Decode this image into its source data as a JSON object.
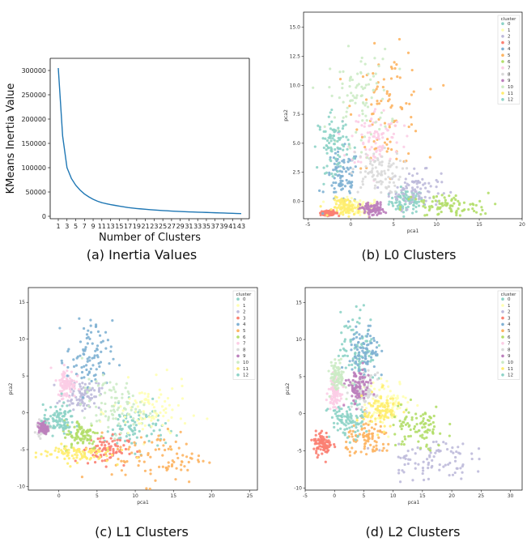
{
  "chart_data": [
    {
      "id": "a",
      "type": "line",
      "caption": "(a) Inertia Values",
      "xlabel": "Number of Clusters",
      "ylabel": "KMeans Inertia Value",
      "x": [
        1,
        2,
        3,
        4,
        5,
        6,
        7,
        8,
        9,
        10,
        11,
        12,
        13,
        14,
        15,
        16,
        17,
        18,
        19,
        20,
        21,
        22,
        23,
        24,
        25,
        26,
        27,
        28,
        29,
        30,
        31,
        32,
        33,
        34,
        35,
        36,
        37,
        38,
        39,
        40,
        41,
        42,
        43
      ],
      "y": [
        305000,
        165000,
        100000,
        78000,
        64000,
        54000,
        46000,
        40000,
        35000,
        31000,
        28000,
        26000,
        24000,
        22500,
        21000,
        19500,
        18000,
        17000,
        16000,
        15200,
        14400,
        13700,
        13000,
        12400,
        11800,
        11300,
        10800,
        10300,
        9900,
        9500,
        9100,
        8800,
        8500,
        8200,
        7900,
        7600,
        7300,
        7000,
        6700,
        6400,
        6100,
        5800,
        5500
      ],
      "xticks": [
        "1",
        "3",
        "5",
        "7",
        "9",
        "11",
        "13",
        "15",
        "17",
        "19",
        "21",
        "23",
        "25",
        "27",
        "29",
        "31",
        "33",
        "35",
        "37",
        "39",
        "41",
        "43"
      ],
      "yticks": [
        "0",
        "50000",
        "100000",
        "150000",
        "200000",
        "250000",
        "300000"
      ],
      "ylim": [
        0,
        320000
      ]
    },
    {
      "id": "b",
      "type": "scatter",
      "caption": "(b) L0 Clusters",
      "xlabel": "pca1",
      "ylabel": "pca2",
      "xlim": [
        -5.5,
        20
      ],
      "ylim": [
        -1.5,
        16.3
      ],
      "xticks": [
        "-5",
        "0",
        "5",
        "10",
        "15",
        "20"
      ],
      "yticks": [
        "0.0",
        "2.5",
        "5.0",
        "7.5",
        "10.0",
        "12.5",
        "15.0"
      ],
      "legend_title": "cluster",
      "legend": [
        "0",
        "1",
        "2",
        "3",
        "4",
        "5",
        "6",
        "7",
        "8",
        "9",
        "10",
        "11",
        "12"
      ],
      "cluster_centers": [
        {
          "cluster": "0",
          "x": 6.5,
          "y": 0.0
        },
        {
          "cluster": "1",
          "x": 1.0,
          "y": -0.5
        },
        {
          "cluster": "2",
          "x": 7.5,
          "y": 1.0
        },
        {
          "cluster": "3",
          "x": -2.5,
          "y": -1.0
        },
        {
          "cluster": "4",
          "x": -1.0,
          "y": 2.0
        },
        {
          "cluster": "5",
          "x": 4.5,
          "y": 8.0
        },
        {
          "cluster": "6",
          "x": 11.0,
          "y": -0.5
        },
        {
          "cluster": "7",
          "x": 3.0,
          "y": 5.5
        },
        {
          "cluster": "8",
          "x": 3.0,
          "y": 2.5
        },
        {
          "cluster": "9",
          "x": 2.5,
          "y": -0.7
        },
        {
          "cluster": "10",
          "x": 1.0,
          "y": 9.0
        },
        {
          "cluster": "11",
          "x": -0.5,
          "y": -0.5
        },
        {
          "cluster": "12",
          "x": -2.0,
          "y": 5.0
        }
      ]
    },
    {
      "id": "c",
      "type": "scatter",
      "caption": "(c) L1 Clusters",
      "xlabel": "pca1",
      "ylabel": "pca2",
      "xlim": [
        -4,
        26
      ],
      "ylim": [
        -10.5,
        17
      ],
      "xticks": [
        "0",
        "5",
        "10",
        "15",
        "20",
        "25"
      ],
      "yticks": [
        "-10",
        "-5",
        "0",
        "5",
        "10",
        "15"
      ],
      "legend_title": "cluster",
      "legend": [
        "0",
        "1",
        "2",
        "3",
        "4",
        "5",
        "6",
        "7",
        "8",
        "9",
        "10",
        "11",
        "12"
      ],
      "cluster_centers": [
        {
          "cluster": "0",
          "x": 10.0,
          "y": -2.0
        },
        {
          "cluster": "1",
          "x": 12.0,
          "y": 0.0
        },
        {
          "cluster": "2",
          "x": 3.0,
          "y": 2.5
        },
        {
          "cluster": "3",
          "x": 6.0,
          "y": -5.0
        },
        {
          "cluster": "4",
          "x": 4.0,
          "y": 7.5
        },
        {
          "cluster": "5",
          "x": 13.0,
          "y": -6.0
        },
        {
          "cluster": "6",
          "x": 3.0,
          "y": -3.0
        },
        {
          "cluster": "7",
          "x": 1.0,
          "y": 4.0
        },
        {
          "cluster": "8",
          "x": -2.0,
          "y": -2.0
        },
        {
          "cluster": "9",
          "x": -2.0,
          "y": -2.0
        },
        {
          "cluster": "10",
          "x": 7.0,
          "y": 1.0
        },
        {
          "cluster": "11",
          "x": 2.0,
          "y": -5.5
        },
        {
          "cluster": "12",
          "x": 0.0,
          "y": -1.0
        }
      ]
    },
    {
      "id": "d",
      "type": "scatter",
      "caption": "(d) L2 Clusters",
      "xlabel": "pca1",
      "ylabel": "pca2",
      "xlim": [
        -5,
        32
      ],
      "ylim": [
        -10.3,
        17
      ],
      "xticks": [
        "-5",
        "0",
        "5",
        "10",
        "15",
        "20",
        "25",
        "30"
      ],
      "yticks": [
        "-10",
        "-5",
        "0",
        "5",
        "10",
        "15"
      ],
      "legend_title": "cluster",
      "legend": [
        "0",
        "1",
        "2",
        "3",
        "4",
        "5",
        "6",
        "7",
        "8",
        "9",
        "10",
        "11",
        "12"
      ],
      "cluster_centers": [
        {
          "cluster": "0",
          "x": 4.0,
          "y": 9.0
        },
        {
          "cluster": "1",
          "x": 9.0,
          "y": 1.5
        },
        {
          "cluster": "2",
          "x": 16.0,
          "y": -6.0
        },
        {
          "cluster": "3",
          "x": -2.0,
          "y": -4.0
        },
        {
          "cluster": "4",
          "x": 5.0,
          "y": 8.0
        },
        {
          "cluster": "5",
          "x": 6.0,
          "y": -3.5
        },
        {
          "cluster": "6",
          "x": 14.0,
          "y": -2.0
        },
        {
          "cluster": "7",
          "x": 0.0,
          "y": 3.0
        },
        {
          "cluster": "8",
          "x": 5.0,
          "y": 3.0
        },
        {
          "cluster": "9",
          "x": 4.0,
          "y": 3.5
        },
        {
          "cluster": "10",
          "x": 0.5,
          "y": 5.0
        },
        {
          "cluster": "11",
          "x": 8.0,
          "y": 0.5
        },
        {
          "cluster": "12",
          "x": 2.0,
          "y": -1.0
        }
      ]
    }
  ],
  "palette": {
    "0": "#8dd3c7",
    "1": "#ffffb3",
    "2": "#bebada",
    "3": "#fb8072",
    "4": "#80b1d3",
    "5": "#fdb462",
    "6": "#b3de69",
    "7": "#fccde5",
    "8": "#d9d9d9",
    "9": "#bc80bd",
    "10": "#ccebc5",
    "11": "#ffed6f",
    "12": "#8dd3c7"
  },
  "line_color": "#1f77b4"
}
